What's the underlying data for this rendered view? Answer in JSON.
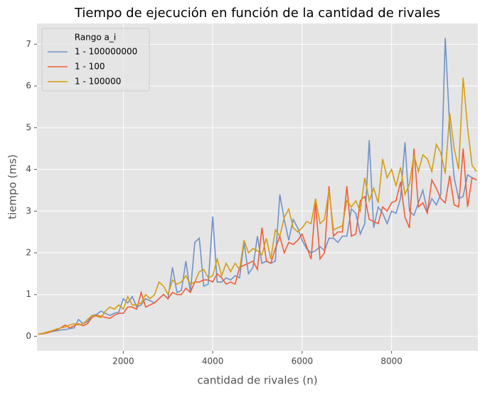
{
  "chart_data": {
    "type": "line",
    "title": "Tiempo de ejecución en función de la cantidad de rivales",
    "xlabel": "cantidad de rivales (n)",
    "ylabel": "tiempo (ms)",
    "legend_title": "Rango a_i",
    "legend": "upper left",
    "grid": true,
    "x": [
      100,
      200,
      300,
      400,
      500,
      600,
      700,
      800,
      900,
      1000,
      1100,
      1200,
      1300,
      1400,
      1500,
      1600,
      1700,
      1800,
      1900,
      2000,
      2100,
      2200,
      2300,
      2400,
      2500,
      2600,
      2700,
      2800,
      2900,
      3000,
      3100,
      3200,
      3300,
      3400,
      3500,
      3600,
      3700,
      3800,
      3900,
      4000,
      4100,
      4200,
      4300,
      4400,
      4500,
      4600,
      4700,
      4800,
      4900,
      5000,
      5100,
      5200,
      5300,
      5400,
      5500,
      5600,
      5700,
      5800,
      5900,
      6000,
      6100,
      6200,
      6300,
      6400,
      6500,
      6600,
      6700,
      6800,
      6900,
      7000,
      7100,
      7200,
      7300,
      7400,
      7500,
      7600,
      7700,
      7800,
      7900,
      8000,
      8100,
      8200,
      8300,
      8400,
      8500,
      8600,
      8700,
      8800,
      8900,
      9000,
      9100,
      9200,
      9300,
      9400,
      9500,
      9600,
      9700,
      9800,
      9900
    ],
    "series": [
      {
        "name": "1 - 100000000",
        "color": "#7092c8",
        "values": [
          0.05,
          0.07,
          0.08,
          0.11,
          0.13,
          0.15,
          0.16,
          0.18,
          0.2,
          0.4,
          0.3,
          0.35,
          0.5,
          0.52,
          0.6,
          0.55,
          0.5,
          0.55,
          0.58,
          0.9,
          0.8,
          0.95,
          0.7,
          0.75,
          0.9,
          0.85,
          0.8,
          0.9,
          1.0,
          0.9,
          1.65,
          1.05,
          1.1,
          1.8,
          1.05,
          2.25,
          2.35,
          1.2,
          1.25,
          2.87,
          1.3,
          1.3,
          1.4,
          1.35,
          1.45,
          1.4,
          2.25,
          1.5,
          1.65,
          2.4,
          1.75,
          1.8,
          1.75,
          1.8,
          3.4,
          2.8,
          2.3,
          2.8,
          2.6,
          2.3,
          2.1,
          2.0,
          2.05,
          2.15,
          2.05,
          2.35,
          2.35,
          2.25,
          2.4,
          2.4,
          3.05,
          2.95,
          2.45,
          2.7,
          4.7,
          2.6,
          3.1,
          2.95,
          2.7,
          3.0,
          2.95,
          3.3,
          4.65,
          3.0,
          2.9,
          3.2,
          3.5,
          3.0,
          3.3,
          3.15,
          3.4,
          7.15,
          5.0,
          3.8,
          3.3,
          3.35,
          3.87,
          3.8,
          3.75
        ]
      },
      {
        "name": "1 - 100",
        "color": "#f25c36",
        "values": [
          0.05,
          0.06,
          0.08,
          0.12,
          0.15,
          0.2,
          0.27,
          0.2,
          0.25,
          0.3,
          0.25,
          0.3,
          0.45,
          0.5,
          0.48,
          0.45,
          0.43,
          0.5,
          0.55,
          0.55,
          0.7,
          0.7,
          0.65,
          1.05,
          0.7,
          0.75,
          0.8,
          0.9,
          1.0,
          0.9,
          1.05,
          1.0,
          1.0,
          1.15,
          1.05,
          1.3,
          1.3,
          1.35,
          1.35,
          1.3,
          1.5,
          1.4,
          1.25,
          1.3,
          1.25,
          1.65,
          1.7,
          1.75,
          1.8,
          1.6,
          2.6,
          1.8,
          1.75,
          2.1,
          2.4,
          2.0,
          2.25,
          2.2,
          2.3,
          2.45,
          2.15,
          1.85,
          3.2,
          1.85,
          2.0,
          3.6,
          2.4,
          2.5,
          2.5,
          3.6,
          2.4,
          2.45,
          3.25,
          3.35,
          2.8,
          2.75,
          2.7,
          3.1,
          3.0,
          3.2,
          3.25,
          3.7,
          2.85,
          2.6,
          4.5,
          3.1,
          3.2,
          2.95,
          3.75,
          3.55,
          3.3,
          3.2,
          3.85,
          3.15,
          3.1,
          4.5,
          3.1,
          3.8,
          3.75
        ]
      },
      {
        "name": "1 - 100000",
        "color": "#d39e12",
        "values": [
          0.05,
          0.07,
          0.1,
          0.13,
          0.17,
          0.2,
          0.22,
          0.27,
          0.3,
          0.27,
          0.3,
          0.4,
          0.5,
          0.48,
          0.45,
          0.6,
          0.7,
          0.65,
          0.75,
          0.65,
          0.95,
          0.75,
          0.75,
          0.8,
          1.0,
          0.9,
          1.0,
          1.3,
          1.2,
          1.0,
          1.35,
          1.25,
          1.3,
          1.45,
          1.25,
          1.3,
          1.55,
          1.6,
          1.4,
          1.45,
          1.85,
          1.45,
          1.75,
          1.55,
          1.75,
          1.6,
          2.3,
          2.0,
          2.1,
          2.05,
          1.95,
          2.35,
          1.85,
          2.55,
          2.4,
          2.85,
          3.05,
          2.6,
          2.5,
          2.6,
          2.75,
          2.7,
          3.3,
          2.7,
          2.8,
          3.5,
          2.55,
          2.6,
          2.65,
          3.25,
          3.1,
          3.25,
          3.0,
          3.8,
          3.25,
          3.55,
          3.2,
          4.25,
          3.8,
          4.0,
          3.6,
          4.05,
          3.4,
          3.65,
          4.35,
          3.95,
          4.35,
          4.25,
          3.95,
          4.6,
          4.4,
          3.9,
          5.35,
          4.5,
          4.0,
          6.2,
          5.0,
          4.1,
          3.95
        ]
      }
    ],
    "xlim": [
      70,
      9930
    ],
    "ylim": [
      -0.35,
      7.5
    ],
    "xticks": [
      2000,
      4000,
      6000,
      8000
    ],
    "yticks": [
      0,
      1,
      2,
      3,
      4,
      5,
      6,
      7
    ]
  }
}
